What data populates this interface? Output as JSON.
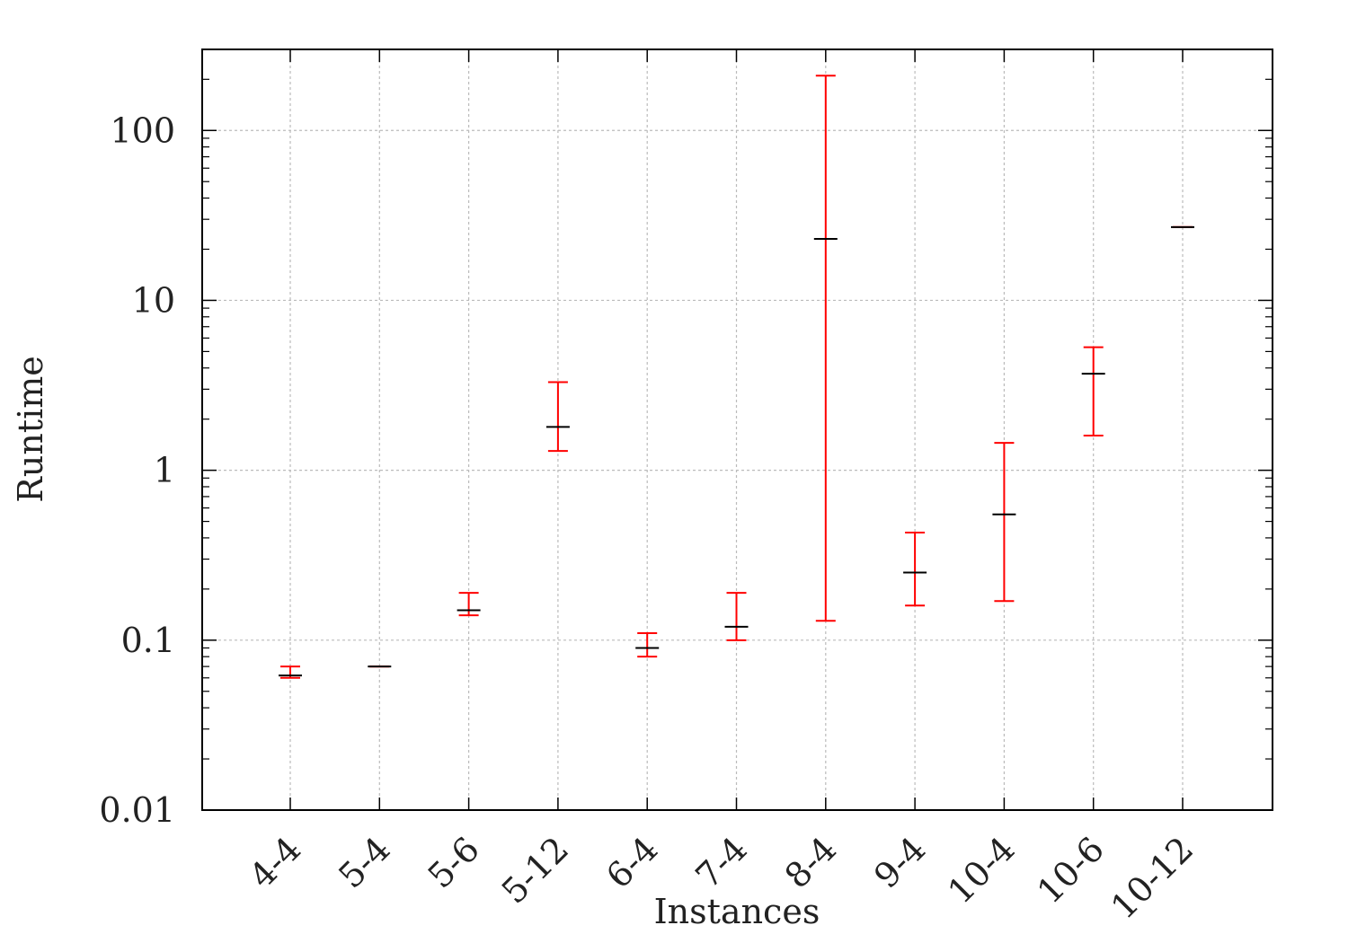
{
  "chart_data": {
    "type": "errorbar",
    "title": "",
    "xlabel": "Instances",
    "ylabel": "Runtime",
    "yscale": "log",
    "ylim": [
      0.01,
      300
    ],
    "yticks": [
      {
        "value": 0.01,
        "label": "0.01"
      },
      {
        "value": 0.1,
        "label": "0.1"
      },
      {
        "value": 1,
        "label": "1"
      },
      {
        "value": 10,
        "label": "10"
      },
      {
        "value": 100,
        "label": "100"
      }
    ],
    "grid": true,
    "legend": "none",
    "categories": [
      "4-4",
      "5-4",
      "5-6",
      "5-12",
      "6-4",
      "7-4",
      "8-4",
      "9-4",
      "10-4",
      "10-6",
      "10-12"
    ],
    "values": [
      0.062,
      0.07,
      0.15,
      1.8,
      0.09,
      0.12,
      23,
      0.25,
      0.55,
      3.7,
      27
    ],
    "low": [
      0.06,
      0.07,
      0.14,
      1.3,
      0.08,
      0.1,
      0.13,
      0.16,
      0.17,
      1.6,
      27
    ],
    "high": [
      0.07,
      0.07,
      0.19,
      3.3,
      0.11,
      0.19,
      210,
      0.43,
      1.45,
      5.3,
      27
    ],
    "colors": {
      "error_bar": "#ff0000",
      "value_mark": "#000000",
      "grid": "#bbbbbb",
      "axis": "#000000",
      "text": "#222222"
    }
  }
}
